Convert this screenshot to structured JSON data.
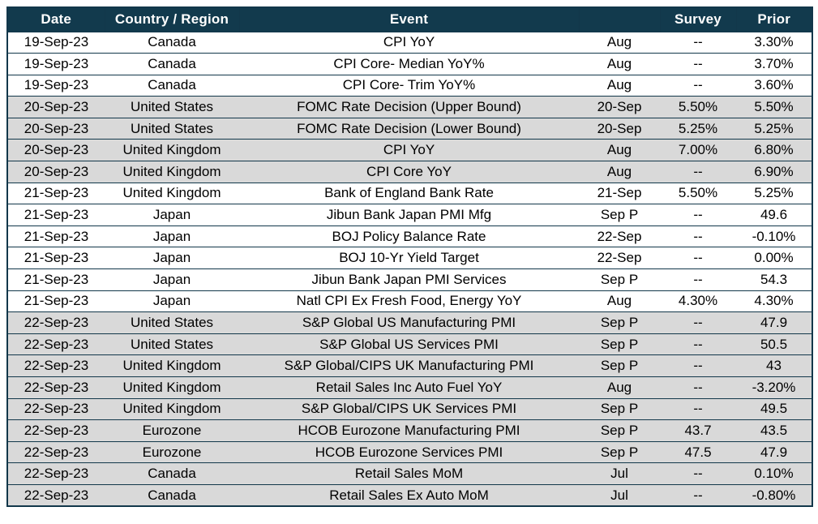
{
  "colors": {
    "header_bg": "#123a4d",
    "header_text": "#ffffff",
    "row_shaded": "#d9d9d9",
    "row_plain": "#ffffff",
    "border": "#12374a",
    "text": "#000000"
  },
  "table": {
    "columns": [
      {
        "key": "date",
        "label": "Date"
      },
      {
        "key": "country",
        "label": "Country / Region"
      },
      {
        "key": "event",
        "label": "Event"
      },
      {
        "key": "period",
        "label": ""
      },
      {
        "key": "survey",
        "label": "Survey"
      },
      {
        "key": "prior",
        "label": "Prior"
      }
    ],
    "rows": [
      {
        "date": "19-Sep-23",
        "country": "Canada",
        "event": "CPI YoY",
        "period": "Aug",
        "survey": "--",
        "prior": "3.30%",
        "shaded": false
      },
      {
        "date": "19-Sep-23",
        "country": "Canada",
        "event": "CPI Core- Median YoY%",
        "period": "Aug",
        "survey": "--",
        "prior": "3.70%",
        "shaded": false
      },
      {
        "date": "19-Sep-23",
        "country": "Canada",
        "event": "CPI Core- Trim YoY%",
        "period": "Aug",
        "survey": "--",
        "prior": "3.60%",
        "shaded": false
      },
      {
        "date": "20-Sep-23",
        "country": "United States",
        "event": "FOMC Rate Decision (Upper Bound)",
        "period": "20-Sep",
        "survey": "5.50%",
        "prior": "5.50%",
        "shaded": true
      },
      {
        "date": "20-Sep-23",
        "country": "United States",
        "event": "FOMC Rate Decision (Lower Bound)",
        "period": "20-Sep",
        "survey": "5.25%",
        "prior": "5.25%",
        "shaded": true
      },
      {
        "date": "20-Sep-23",
        "country": "United Kingdom",
        "event": "CPI YoY",
        "period": "Aug",
        "survey": "7.00%",
        "prior": "6.80%",
        "shaded": true
      },
      {
        "date": "20-Sep-23",
        "country": "United Kingdom",
        "event": "CPI Core YoY",
        "period": "Aug",
        "survey": "--",
        "prior": "6.90%",
        "shaded": true
      },
      {
        "date": "21-Sep-23",
        "country": "United Kingdom",
        "event": "Bank of England Bank Rate",
        "period": "21-Sep",
        "survey": "5.50%",
        "prior": "5.25%",
        "shaded": false
      },
      {
        "date": "21-Sep-23",
        "country": "Japan",
        "event": "Jibun Bank Japan PMI Mfg",
        "period": "Sep P",
        "survey": "--",
        "prior": "49.6",
        "shaded": false
      },
      {
        "date": "21-Sep-23",
        "country": "Japan",
        "event": "BOJ Policy Balance Rate",
        "period": "22-Sep",
        "survey": "--",
        "prior": "-0.10%",
        "shaded": false
      },
      {
        "date": "21-Sep-23",
        "country": "Japan",
        "event": "BOJ 10-Yr Yield Target",
        "period": "22-Sep",
        "survey": "--",
        "prior": "0.00%",
        "shaded": false
      },
      {
        "date": "21-Sep-23",
        "country": "Japan",
        "event": "Jibun Bank Japan PMI Services",
        "period": "Sep P",
        "survey": "--",
        "prior": "54.3",
        "shaded": false
      },
      {
        "date": "21-Sep-23",
        "country": "Japan",
        "event": "Natl CPI Ex Fresh Food, Energy YoY",
        "period": "Aug",
        "survey": "4.30%",
        "prior": "4.30%",
        "shaded": false
      },
      {
        "date": "22-Sep-23",
        "country": "United States",
        "event": "S&P Global US Manufacturing PMI",
        "period": "Sep P",
        "survey": "--",
        "prior": "47.9",
        "shaded": true
      },
      {
        "date": "22-Sep-23",
        "country": "United States",
        "event": "S&P Global US Services PMI",
        "period": "Sep P",
        "survey": "--",
        "prior": "50.5",
        "shaded": true
      },
      {
        "date": "22-Sep-23",
        "country": "United Kingdom",
        "event": "S&P Global/CIPS UK Manufacturing PMI",
        "period": "Sep P",
        "survey": "--",
        "prior": "43",
        "shaded": true
      },
      {
        "date": "22-Sep-23",
        "country": "United Kingdom",
        "event": "Retail Sales Inc Auto Fuel YoY",
        "period": "Aug",
        "survey": "--",
        "prior": "-3.20%",
        "shaded": true
      },
      {
        "date": "22-Sep-23",
        "country": "United Kingdom",
        "event": "S&P Global/CIPS UK Services PMI",
        "period": "Sep P",
        "survey": "--",
        "prior": "49.5",
        "shaded": true
      },
      {
        "date": "22-Sep-23",
        "country": "Eurozone",
        "event": "HCOB Eurozone Manufacturing PMI",
        "period": "Sep P",
        "survey": "43.7",
        "prior": "43.5",
        "shaded": true
      },
      {
        "date": "22-Sep-23",
        "country": "Eurozone",
        "event": "HCOB Eurozone Services PMI",
        "period": "Sep P",
        "survey": "47.5",
        "prior": "47.9",
        "shaded": true
      },
      {
        "date": "22-Sep-23",
        "country": "Canada",
        "event": "Retail Sales MoM",
        "period": "Jul",
        "survey": "--",
        "prior": "0.10%",
        "shaded": true
      },
      {
        "date": "22-Sep-23",
        "country": "Canada",
        "event": "Retail Sales Ex Auto MoM",
        "period": "Jul",
        "survey": "--",
        "prior": "-0.80%",
        "shaded": true
      }
    ]
  }
}
